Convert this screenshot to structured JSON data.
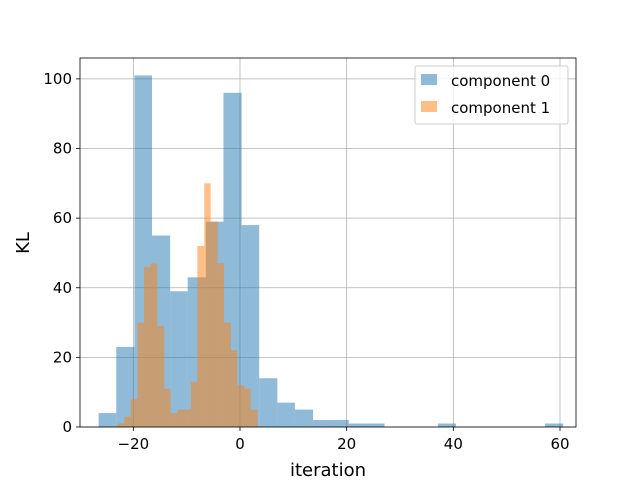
{
  "chart_data": {
    "type": "bar",
    "subtype": "overlapping-histogram",
    "title": "",
    "xlabel": "iteration",
    "ylabel": "KL",
    "xlim": [
      -30,
      63
    ],
    "ylim": [
      0,
      106
    ],
    "xticks": [
      -20,
      0,
      20,
      40,
      60
    ],
    "yticks": [
      0,
      20,
      40,
      60,
      80,
      100
    ],
    "xtick_labels": [
      "−20",
      "0",
      "20",
      "40",
      "60"
    ],
    "ytick_labels": [
      "0",
      "20",
      "40",
      "60",
      "80",
      "100"
    ],
    "grid": true,
    "legend_position": "top-right",
    "series": [
      {
        "name": "component 0",
        "color": "#1f77b4",
        "alpha": 0.5,
        "bin_edges": [
          -26.5,
          -23.2,
          -19.8,
          -16.5,
          -13.1,
          -9.8,
          -6.4,
          -3.1,
          0.3,
          3.6,
          7.0,
          10.3,
          13.7,
          17.0,
          20.4,
          23.7,
          27.1,
          30.4,
          33.8,
          37.1,
          40.5,
          43.8,
          47.2,
          50.5,
          53.9,
          57.2,
          60.6
        ],
        "counts": [
          4,
          23,
          101,
          55,
          39,
          43,
          59,
          96,
          58,
          14,
          7,
          5,
          2,
          2,
          1,
          1,
          0,
          0,
          0,
          1,
          0,
          0,
          0,
          0,
          0,
          1
        ]
      },
      {
        "name": "component 1",
        "color": "#ff7f0e",
        "alpha": 0.5,
        "bin_edges": [
          -23.0,
          -21.7,
          -20.5,
          -19.2,
          -18.0,
          -16.7,
          -15.5,
          -14.2,
          -13.0,
          -11.7,
          -10.5,
          -9.2,
          -8.0,
          -6.7,
          -5.5,
          -4.2,
          -3.0,
          -1.7,
          -0.5,
          0.8,
          2.0,
          3.3,
          4.5,
          5.8,
          7.0,
          8.3
        ],
        "counts": [
          1,
          3,
          8,
          30,
          46,
          47,
          29,
          11,
          4,
          5,
          5,
          13,
          52,
          70,
          59,
          47,
          30,
          22,
          12,
          11,
          5,
          0,
          0,
          0,
          0
        ]
      }
    ]
  }
}
